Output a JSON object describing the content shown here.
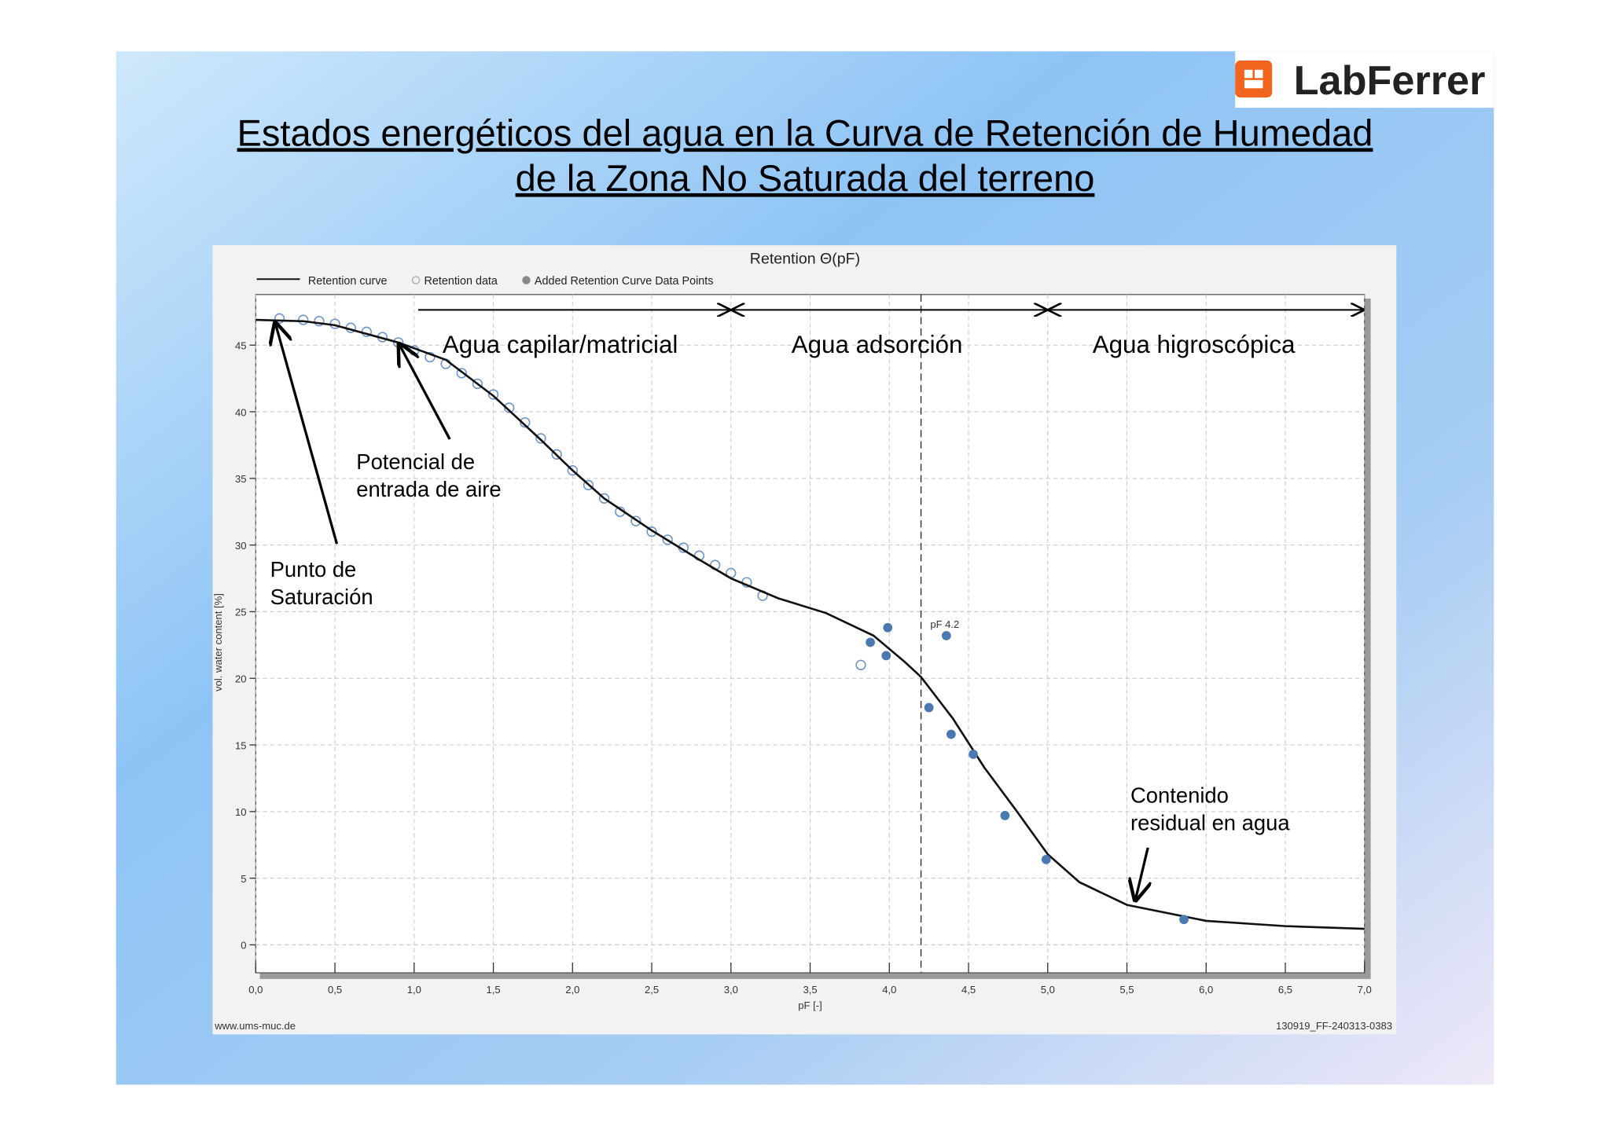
{
  "slide": {
    "title_lines": [
      "Estados energéticos del agua en la Curva de Retención de Humedad",
      "de la Zona No Saturada del terreno"
    ],
    "logo": "LabFerrer"
  },
  "chart_data": {
    "type": "line",
    "title": "Retention Θ(pF)",
    "x_label": "pF [-]",
    "y_label": "vol. water content [%]",
    "xlim": [
      0,
      7
    ],
    "ylim": [
      -2.1,
      48.8
    ],
    "xticks": [
      {
        "value": 0,
        "label": "0,0"
      },
      {
        "value": 0.5,
        "label": "0,5"
      },
      {
        "value": 1,
        "label": "1,0"
      },
      {
        "value": 1.5,
        "label": "1,5"
      },
      {
        "value": 2,
        "label": "2,0"
      },
      {
        "value": 2.5,
        "label": "2,5"
      },
      {
        "value": 3,
        "label": "3,0"
      },
      {
        "value": 3.5,
        "label": "3,5"
      },
      {
        "value": 4,
        "label": "4,0"
      },
      {
        "value": 4.5,
        "label": "4,5"
      },
      {
        "value": 5,
        "label": "5,0"
      },
      {
        "value": 5.5,
        "label": "5,5"
      },
      {
        "value": 6,
        "label": "6,0"
      },
      {
        "value": 6.5,
        "label": "6,5"
      },
      {
        "value": 7,
        "label": "7,0"
      }
    ],
    "yticks": [
      0,
      5,
      10,
      15,
      20,
      25,
      30,
      35,
      40,
      45
    ],
    "grid": true,
    "series": [
      {
        "name": "Retention curve",
        "style": "line",
        "color": "#111111",
        "x": [
          0,
          0.3,
          0.5,
          0.9,
          1.2,
          1.5,
          1.8,
          2.0,
          2.2,
          2.5,
          2.8,
          3.0,
          3.3,
          3.6,
          3.9,
          4.1,
          4.2,
          4.4,
          4.6,
          4.8,
          5.0,
          5.2,
          5.5,
          6.0,
          6.5,
          7.0
        ],
        "values": [
          46.9,
          46.8,
          46.5,
          45.2,
          43.9,
          41.2,
          37.9,
          35.6,
          33.5,
          31.1,
          28.9,
          27.5,
          26.0,
          24.9,
          23.2,
          21.2,
          20.1,
          17.0,
          13.3,
          10.1,
          6.8,
          4.7,
          3.0,
          1.8,
          1.4,
          1.2
        ]
      },
      {
        "name": "Retention data",
        "style": "open",
        "color": "#6f95c6",
        "x": [
          0.15,
          0.3,
          0.4,
          0.5,
          0.6,
          0.7,
          0.8,
          0.9,
          1.0,
          1.1,
          1.2,
          1.3,
          1.4,
          1.5,
          1.6,
          1.7,
          1.8,
          1.9,
          2.0,
          2.1,
          2.2,
          2.3,
          2.4,
          2.5,
          2.6,
          2.7,
          2.8,
          2.9,
          3.0,
          3.1,
          3.2,
          3.82
        ],
        "values": [
          47.0,
          46.9,
          46.8,
          46.6,
          46.3,
          46.0,
          45.6,
          45.2,
          44.6,
          44.1,
          43.6,
          42.9,
          42.1,
          41.3,
          40.3,
          39.2,
          38.0,
          36.8,
          35.6,
          34.5,
          33.5,
          32.5,
          31.8,
          31.0,
          30.4,
          29.8,
          29.2,
          28.5,
          27.9,
          27.2,
          26.2,
          21.0
        ]
      },
      {
        "name": "Added Retention Curve Data Points",
        "style": "filled",
        "color": "#4a78b0",
        "x": [
          3.88,
          3.99,
          3.98,
          4.36,
          4.25,
          4.39,
          4.53,
          4.73,
          4.99,
          5.86
        ],
        "values": [
          22.7,
          23.8,
          21.7,
          23.2,
          17.8,
          15.8,
          14.3,
          9.7,
          6.4,
          1.9
        ]
      }
    ],
    "vline": {
      "value": 4.2,
      "label": "pF 4.2"
    },
    "regions": [
      {
        "label": "Agua capilar/matricial",
        "from": 1.0,
        "to": 3.0
      },
      {
        "label": "Agua adsorción",
        "from": 3.0,
        "to": 5.0
      },
      {
        "label": "Agua higroscópica",
        "from": 5.0,
        "to": 7.0
      }
    ],
    "annotations": [
      {
        "lines": [
          "Punto de",
          "Saturación"
        ],
        "x": 0.12,
        "y": 46.8
      },
      {
        "lines": [
          "Potencial de",
          "entrada de aire"
        ],
        "x": 0.9,
        "y": 45.2
      },
      {
        "lines": [
          "Contenido",
          "residual en agua"
        ],
        "x": 5.55,
        "y": 3.2
      }
    ],
    "footer_left": "www.ums-muc.de",
    "footer_right": "130919_FF-240313-0383"
  }
}
